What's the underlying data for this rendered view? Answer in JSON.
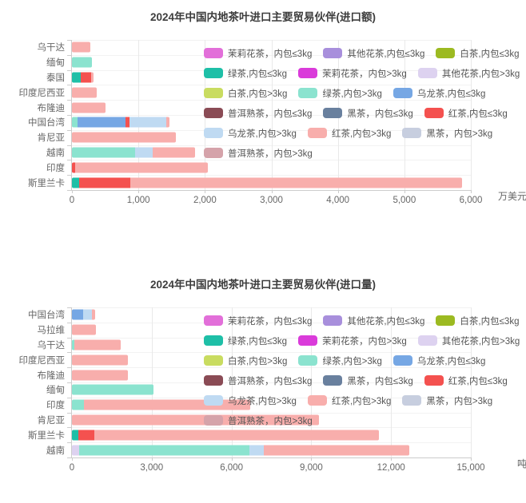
{
  "series_colors": {
    "茉莉花茶，内包≤3kg": "#E26FD9",
    "其他花茶,内包≤3kg": "#A88FDC",
    "白茶,内包≤3kg": "#9CBA21",
    "绿茶,内包≤3kg": "#1EBFA7",
    "茉莉花茶，内包>3kg": "#DA3BDA",
    "其他花茶,内包>3kg": "#DDD2F0",
    "白茶,内包>3kg": "#C9DC60",
    "绿茶,内包>3kg": "#8BE3CF",
    "乌龙茶,内包≤3kg": "#76A7E4",
    "普洱熟茶，内包≤3kg": "#8A4B55",
    "黑茶，内包≤3kg": "#69809E",
    "红茶,内包≤3kg": "#F4514F",
    "乌龙茶,内包>3kg": "#BFDAF2",
    "红茶,内包>3kg": "#F8AEAC",
    "黑茶，内包>3kg": "#C7CEDF",
    "普洱熟茶，内包>3kg": "#D5A3AA"
  },
  "legend_rows": [
    [
      "茉莉花茶，内包≤3kg",
      "其他花茶,内包≤3kg",
      "白茶,内包≤3kg"
    ],
    [
      "绿茶,内包≤3kg",
      "茉莉花茶，内包>3kg",
      "其他花茶,内包>3kg"
    ],
    [
      "白茶,内包>3kg",
      "绿茶,内包>3kg",
      "乌龙茶,内包≤3kg"
    ],
    [
      "普洱熟茶，内包≤3kg",
      "黑茶，内包≤3kg",
      "红茶,内包≤3kg"
    ],
    [
      "乌龙茶,内包>3kg",
      "红茶,内包>3kg",
      "黑茶，内包>3kg"
    ],
    [
      "普洱熟茶，内包>3kg"
    ]
  ],
  "chart_data": [
    {
      "type": "bar",
      "orientation": "horizontal",
      "stacked": true,
      "title": "2024年中国内地茶叶进口主要贸易伙伴(进口额)",
      "unit": "万美元",
      "xlim": [
        0,
        6000
      ],
      "xticks": [
        0,
        1000,
        2000,
        3000,
        4000,
        5000,
        6000
      ],
      "grid": true,
      "rows": [
        {
          "category": "乌干达",
          "segments": [
            {
              "series": "红茶,内包>3kg",
              "value": 280
            }
          ]
        },
        {
          "category": "缅甸",
          "segments": [
            {
              "series": "绿茶,内包>3kg",
              "value": 300
            }
          ]
        },
        {
          "category": "泰国",
          "segments": [
            {
              "series": "绿茶,内包≤3kg",
              "value": 130
            },
            {
              "series": "红茶,内包≤3kg",
              "value": 160
            },
            {
              "series": "红茶,内包>3kg",
              "value": 40
            }
          ]
        },
        {
          "category": "印度尼西亚",
          "segments": [
            {
              "series": "红茶,内包>3kg",
              "value": 370
            }
          ]
        },
        {
          "category": "布隆迪",
          "segments": [
            {
              "series": "红茶,内包>3kg",
              "value": 510
            }
          ]
        },
        {
          "category": "中国台湾",
          "segments": [
            {
              "series": "绿茶,内包>3kg",
              "value": 90
            },
            {
              "series": "乌龙茶,内包≤3kg",
              "value": 720
            },
            {
              "series": "红茶,内包≤3kg",
              "value": 50
            },
            {
              "series": "乌龙茶,内包>3kg",
              "value": 560
            },
            {
              "series": "红茶,内包>3kg",
              "value": 50
            }
          ]
        },
        {
          "category": "肯尼亚",
          "segments": [
            {
              "series": "红茶,内包>3kg",
              "value": 1560
            }
          ]
        },
        {
          "category": "越南",
          "segments": [
            {
              "series": "绿茶,内包>3kg",
              "value": 950
            },
            {
              "series": "乌龙茶,内包>3kg",
              "value": 260
            },
            {
              "series": "红茶,内包>3kg",
              "value": 640
            }
          ]
        },
        {
          "category": "印度",
          "segments": [
            {
              "series": "红茶,内包≤3kg",
              "value": 50
            },
            {
              "series": "红茶,内包>3kg",
              "value": 1990
            }
          ]
        },
        {
          "category": "斯里兰卡",
          "segments": [
            {
              "series": "绿茶,内包≤3kg",
              "value": 110
            },
            {
              "series": "红茶,内包≤3kg",
              "value": 770
            },
            {
              "series": "红茶,内包>3kg",
              "value": 4990
            }
          ]
        }
      ]
    },
    {
      "type": "bar",
      "orientation": "horizontal",
      "stacked": true,
      "title": "2024年中国内地茶叶进口主要贸易伙伴(进口量)",
      "unit": "吨",
      "xlim": [
        0,
        15000
      ],
      "xticks": [
        0,
        3000,
        6000,
        9000,
        12000,
        15000
      ],
      "grid": true,
      "rows": [
        {
          "category": "中国台湾",
          "segments": [
            {
              "series": "乌龙茶,内包≤3kg",
              "value": 430
            },
            {
              "series": "乌龙茶,内包>3kg",
              "value": 310
            },
            {
              "series": "红茶,内包>3kg",
              "value": 120
            }
          ]
        },
        {
          "category": "马拉维",
          "segments": [
            {
              "series": "红茶,内包>3kg",
              "value": 900
            }
          ]
        },
        {
          "category": "乌干达",
          "segments": [
            {
              "series": "绿茶,内包>3kg",
              "value": 80
            },
            {
              "series": "红茶,内包>3kg",
              "value": 1750
            }
          ]
        },
        {
          "category": "印度尼西亚",
          "segments": [
            {
              "series": "红茶,内包>3kg",
              "value": 2090
            }
          ]
        },
        {
          "category": "布隆迪",
          "segments": [
            {
              "series": "红茶,内包>3kg",
              "value": 2110
            }
          ]
        },
        {
          "category": "缅甸",
          "segments": [
            {
              "series": "绿茶,内包>3kg",
              "value": 3080
            }
          ]
        },
        {
          "category": "印度",
          "segments": [
            {
              "series": "绿茶,内包>3kg",
              "value": 450
            },
            {
              "series": "红茶,内包>3kg",
              "value": 6250
            }
          ]
        },
        {
          "category": "肯尼亚",
          "segments": [
            {
              "series": "红茶,内包>3kg",
              "value": 9300
            }
          ]
        },
        {
          "category": "斯里兰卡",
          "segments": [
            {
              "series": "绿茶,内包≤3kg",
              "value": 230
            },
            {
              "series": "红茶,内包≤3kg",
              "value": 600
            },
            {
              "series": "红茶,内包>3kg",
              "value": 10700
            }
          ]
        },
        {
          "category": "越南",
          "segments": [
            {
              "series": "其他花茶,内包>3kg",
              "value": 270
            },
            {
              "series": "绿茶,内包>3kg",
              "value": 6400
            },
            {
              "series": "乌龙茶,内包>3kg",
              "value": 530
            },
            {
              "series": "红茶,内包>3kg",
              "value": 5500
            }
          ]
        }
      ]
    }
  ]
}
